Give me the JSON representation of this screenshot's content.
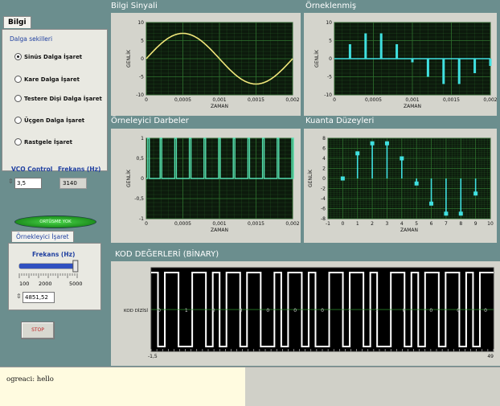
{
  "left_panel": {
    "tab_label": "Bilgi",
    "group_label": "Dalga sekilleri",
    "options": [
      {
        "label": "Sinüs Dalga İşaret",
        "selected": true
      },
      {
        "label": "Kare Dalga İşaret",
        "selected": false
      },
      {
        "label": "Testere Dişi Dalga İşaret",
        "selected": false
      },
      {
        "label": "Üçgen Dalga İşaret",
        "selected": false
      },
      {
        "label": "Rastgele İşaret",
        "selected": false
      }
    ],
    "vco_label": "VCO Control",
    "vco_value": "3,5",
    "freq_label": "Frekans (Hz)",
    "freq_value": "3140"
  },
  "led_label": "ORTÜSME YOK",
  "sampler_panel": {
    "tab_label": "Örnekleyici İşaret",
    "freq_label": "Frekans (Hz)",
    "slider_fraction": 0.97,
    "scale_labels": [
      "100",
      "2000",
      "5000"
    ],
    "value": "4851,52"
  },
  "stop_label": "STOP",
  "message": "ogreaci: hello",
  "colors": {
    "background": "#6b8e8e",
    "plot_bg": "#0c1a0c",
    "grid": "#2e6f2e",
    "sine": "#f0e67a",
    "cyan": "#40e0e0",
    "pulse": "#55e0b0",
    "white": "#ffffff"
  },
  "charts": [
    {
      "key": "bilgi",
      "title": "Bilgi Sinyali",
      "xlabel": "ZAMAN",
      "ylabel": "GENLİK",
      "xticks": [
        "0",
        "0,0005",
        "0,001",
        "0,0015",
        "0,002"
      ],
      "yticks": [
        "10",
        "5",
        "0",
        "-5",
        "-10"
      ]
    },
    {
      "key": "ornek",
      "title": "Örneklenmiş",
      "xlabel": "ZAMAN",
      "ylabel": "GENLİK",
      "xticks": [
        "0",
        "0,0005",
        "0,001",
        "0,0015",
        "0,002"
      ],
      "yticks": [
        "10",
        "5",
        "0",
        "-5",
        "-10"
      ]
    },
    {
      "key": "darbe",
      "title": "Örneleyici Darbeler",
      "xlabel": "ZAMAN",
      "ylabel": "GENLİK",
      "xticks": [
        "0",
        "0,0005",
        "0,001",
        "0,0015",
        "0,002"
      ],
      "yticks": [
        "1",
        "0,5",
        "0",
        "-0,5",
        "-1"
      ]
    },
    {
      "key": "kuanta",
      "title": "Kuanta Düzeyleri",
      "xlabel": "ZAMAN",
      "ylabel": "GENLİK",
      "xticks": [
        "-1",
        "0",
        "1",
        "2",
        "3",
        "4",
        "5",
        "6",
        "7",
        "8",
        "9",
        "10"
      ],
      "yticks": [
        "8",
        "6",
        "4",
        "2",
        "0",
        "-2",
        "-4",
        "-6",
        "-8"
      ]
    },
    {
      "key": "kod",
      "title": "KOD DEĞERLERİ (BİNARY)",
      "ylabel": "KOD DİZİSİ",
      "xticks": [
        "-1,5",
        "49"
      ]
    }
  ],
  "chart_data": [
    {
      "type": "line",
      "title": "Bilgi Sinyali",
      "xlabel": "ZAMAN",
      "ylabel": "GENLİK",
      "xlim": [
        0,
        0.002
      ],
      "ylim": [
        -10,
        10
      ],
      "grid": true,
      "series": [
        {
          "amplitude": 7,
          "frequency_hz": 500,
          "x_range": [
            0,
            0.002
          ]
        }
      ]
    },
    {
      "type": "bar",
      "title": "Örneklenmiş",
      "xlabel": "ZAMAN",
      "ylabel": "GENLİK",
      "xlim": [
        0,
        0.002
      ],
      "ylim": [
        -10,
        10
      ],
      "grid": true,
      "x": [
        0.0002,
        0.0004,
        0.0006,
        0.0008,
        0.001,
        0.0012,
        0.0014,
        0.0016,
        0.0018,
        0.002
      ],
      "values": [
        4,
        7,
        7,
        4,
        -1,
        -5,
        -7,
        -7,
        -4,
        -2
      ]
    },
    {
      "type": "line",
      "title": "Örneleyici Darbeler",
      "xlabel": "ZAMAN",
      "ylabel": "GENLİK",
      "xlim": [
        0,
        0.002
      ],
      "ylim": [
        -1,
        1
      ],
      "grid": true,
      "pulse_times": [
        3e-05,
        0.0002,
        0.0004,
        0.0006,
        0.0008,
        0.001,
        0.0012,
        0.0014,
        0.0016,
        0.0018,
        0.002
      ],
      "pulse_high": 1,
      "pulse_low": 0
    },
    {
      "type": "scatter",
      "title": "Kuanta Düzeyleri",
      "xlabel": "ZAMAN",
      "ylabel": "GENLİK",
      "xlim": [
        -1,
        10
      ],
      "ylim": [
        -8,
        8
      ],
      "grid": true,
      "x": [
        0,
        1,
        2,
        3,
        4,
        5,
        6,
        7,
        8,
        9
      ],
      "values": [
        0,
        5,
        7,
        7,
        4,
        -1,
        -5,
        -7,
        -7,
        -3
      ]
    },
    {
      "type": "line",
      "title": "KOD DEĞERLERİ (BİNARY)",
      "ylabel": "KOD DİZİSİ",
      "xlim": [
        -1.5,
        49
      ],
      "grid": false,
      "bits": [
        1,
        0,
        1,
        1,
        0,
        0,
        1,
        1,
        0,
        1,
        0,
        1,
        1,
        0,
        1,
        1,
        0,
        0,
        1,
        0,
        1,
        1,
        0,
        1,
        0,
        0,
        1,
        1,
        0,
        1,
        1,
        0,
        1,
        0,
        0,
        1,
        1,
        0,
        1,
        0,
        1,
        1,
        0,
        1,
        1,
        0,
        1,
        0,
        1,
        1
      ],
      "row_digits": [
        "0",
        "1",
        "0",
        "0",
        "0",
        "0",
        "0",
        "1",
        "1",
        "0",
        "0",
        "0",
        "0"
      ]
    }
  ]
}
